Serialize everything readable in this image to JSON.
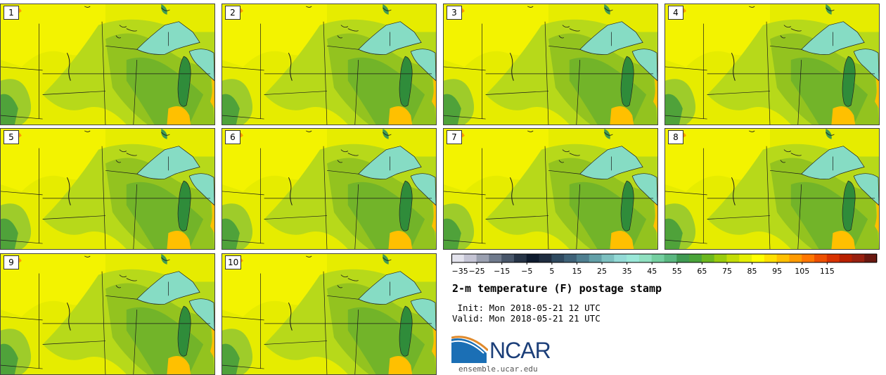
{
  "stamps": [
    {
      "label": "1"
    },
    {
      "label": "2"
    },
    {
      "label": "3"
    },
    {
      "label": "4"
    },
    {
      "label": "5"
    },
    {
      "label": "6"
    },
    {
      "label": "7"
    },
    {
      "label": "8"
    },
    {
      "label": "9"
    },
    {
      "label": "10"
    }
  ],
  "colorbar": {
    "ticks": [
      "−35",
      "−25",
      "−15",
      "−5",
      "5",
      "15",
      "25",
      "35",
      "45",
      "55",
      "65",
      "75",
      "85",
      "95",
      "105",
      "115"
    ],
    "colors": [
      "#e3e3ed",
      "#c4c4d4",
      "#9aa0b0",
      "#6f7a8c",
      "#48566a",
      "#263447",
      "#0e1b2e",
      "#1f2d40",
      "#2f4a60",
      "#3e6278",
      "#4f7f90",
      "#62a0a8",
      "#7cc0c0",
      "#93dad6",
      "#9ae8d8",
      "#8fe0c0",
      "#74cfa0",
      "#5ab880",
      "#3f9a52",
      "#4aa43a",
      "#6cb81e",
      "#99cc0c",
      "#c3dd06",
      "#e4ef02",
      "#ffff00",
      "#ffe000",
      "#ffc000",
      "#ff9a00",
      "#ff7600",
      "#ee5000",
      "#d83200",
      "#b82000",
      "#982010",
      "#6a1810"
    ]
  },
  "text": {
    "title": "2-m temperature (F) postage stamp",
    "init": " Init: Mon 2018-05-21 12 UTC",
    "valid": "Valid: Mon 2018-05-21 21 UTC"
  },
  "logo": {
    "name": "NCAR",
    "url": "ensemble.ucar.edu"
  }
}
